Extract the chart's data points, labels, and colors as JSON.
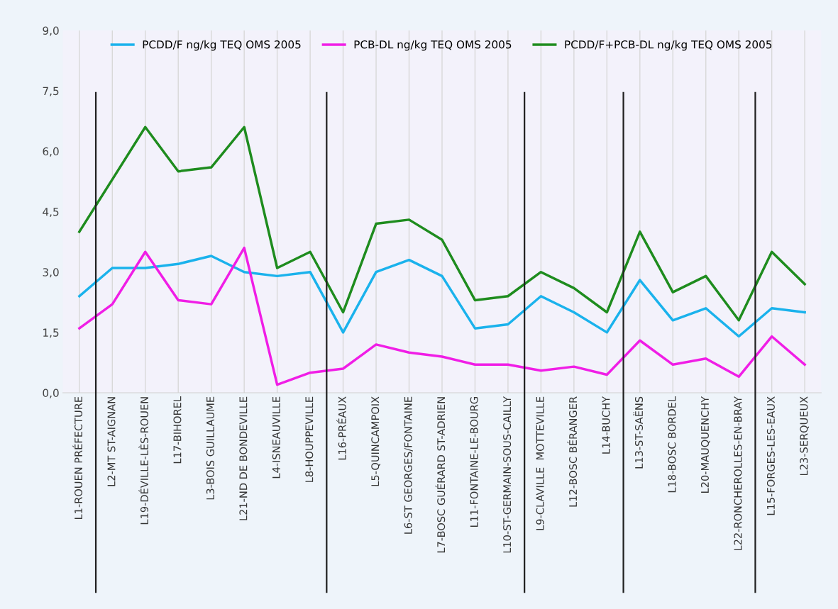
{
  "chart_data": {
    "type": "line",
    "categories": [
      "L1-ROUEN PRÉFECTURE",
      "L2-MT ST-AIGNAN",
      "L19-DÉVILLE-LÈS-ROUEN",
      "L17-BIHOREL",
      "L3-BOIS GUILLAUME",
      "L21-ND DE BONDEVILLE",
      "L4-ISNEAUVILLE",
      "L8-HOUPPEVILLE",
      "L16-PRÉAUX",
      "L5-QUINCAMPOIX",
      "L6-ST GEORGES/FONTAINE",
      "L7-BOSC GUÉRARD ST-ADRIEN",
      "L11-FONTAINE-LE-BOURG",
      "L10-ST-GERMAIN-SOUS-CAILLY",
      "L9-CLAVILLE  MOTTEVILLE",
      "L12-BOSC BÉRANGER",
      "L14-BUCHY",
      "L13-ST-SAËNS",
      "L18-BOSC BORDEL",
      "L20-MAUQUENCHY",
      "L22-RONCHEROLLES-EN-BRAY",
      "L15-FORGES-LES-EAUX",
      "L23-SERQUEUX"
    ],
    "series": [
      {
        "name": "PCDD/F ng/kg TEQ OMS 2005",
        "color": "#1ab2ec",
        "values": [
          2.4,
          3.1,
          3.1,
          3.2,
          3.4,
          3.0,
          2.9,
          3.0,
          1.5,
          3.0,
          3.3,
          2.9,
          1.6,
          1.7,
          2.4,
          2.0,
          1.5,
          2.8,
          1.8,
          2.1,
          1.4,
          2.1,
          2.0
        ]
      },
      {
        "name": "PCB-DL ng/kg TEQ OMS 2005",
        "color": "#f01ee6",
        "values": [
          1.6,
          2.2,
          3.5,
          2.3,
          2.2,
          3.6,
          0.2,
          0.5,
          0.6,
          1.2,
          1.0,
          0.9,
          0.7,
          0.7,
          0.55,
          0.65,
          0.45,
          1.3,
          0.7,
          0.85,
          0.4,
          1.4,
          0.7
        ]
      },
      {
        "name": "PCDD/F+PCB-DL ng/kg TEQ OMS 2005",
        "color": "#1e8c1e",
        "values": [
          4.0,
          5.3,
          6.6,
          5.5,
          5.6,
          6.6,
          3.1,
          3.5,
          2.0,
          4.2,
          4.3,
          3.8,
          2.3,
          2.4,
          3.0,
          2.6,
          2.0,
          4.0,
          2.5,
          2.9,
          1.8,
          3.5,
          2.7
        ]
      }
    ],
    "ylim": [
      0,
      9
    ],
    "yticks": [
      {
        "value": 0,
        "label": "0,0"
      },
      {
        "value": 1.5,
        "label": "1,5"
      },
      {
        "value": 3,
        "label": "3,0"
      },
      {
        "value": 4.5,
        "label": "4,5"
      },
      {
        "value": 6,
        "label": "6,0"
      },
      {
        "value": 7.5,
        "label": "7,5"
      },
      {
        "value": 9,
        "label": "9,0"
      }
    ],
    "grid": "x",
    "legend": "top",
    "line_style": "solid",
    "marker": "none"
  }
}
